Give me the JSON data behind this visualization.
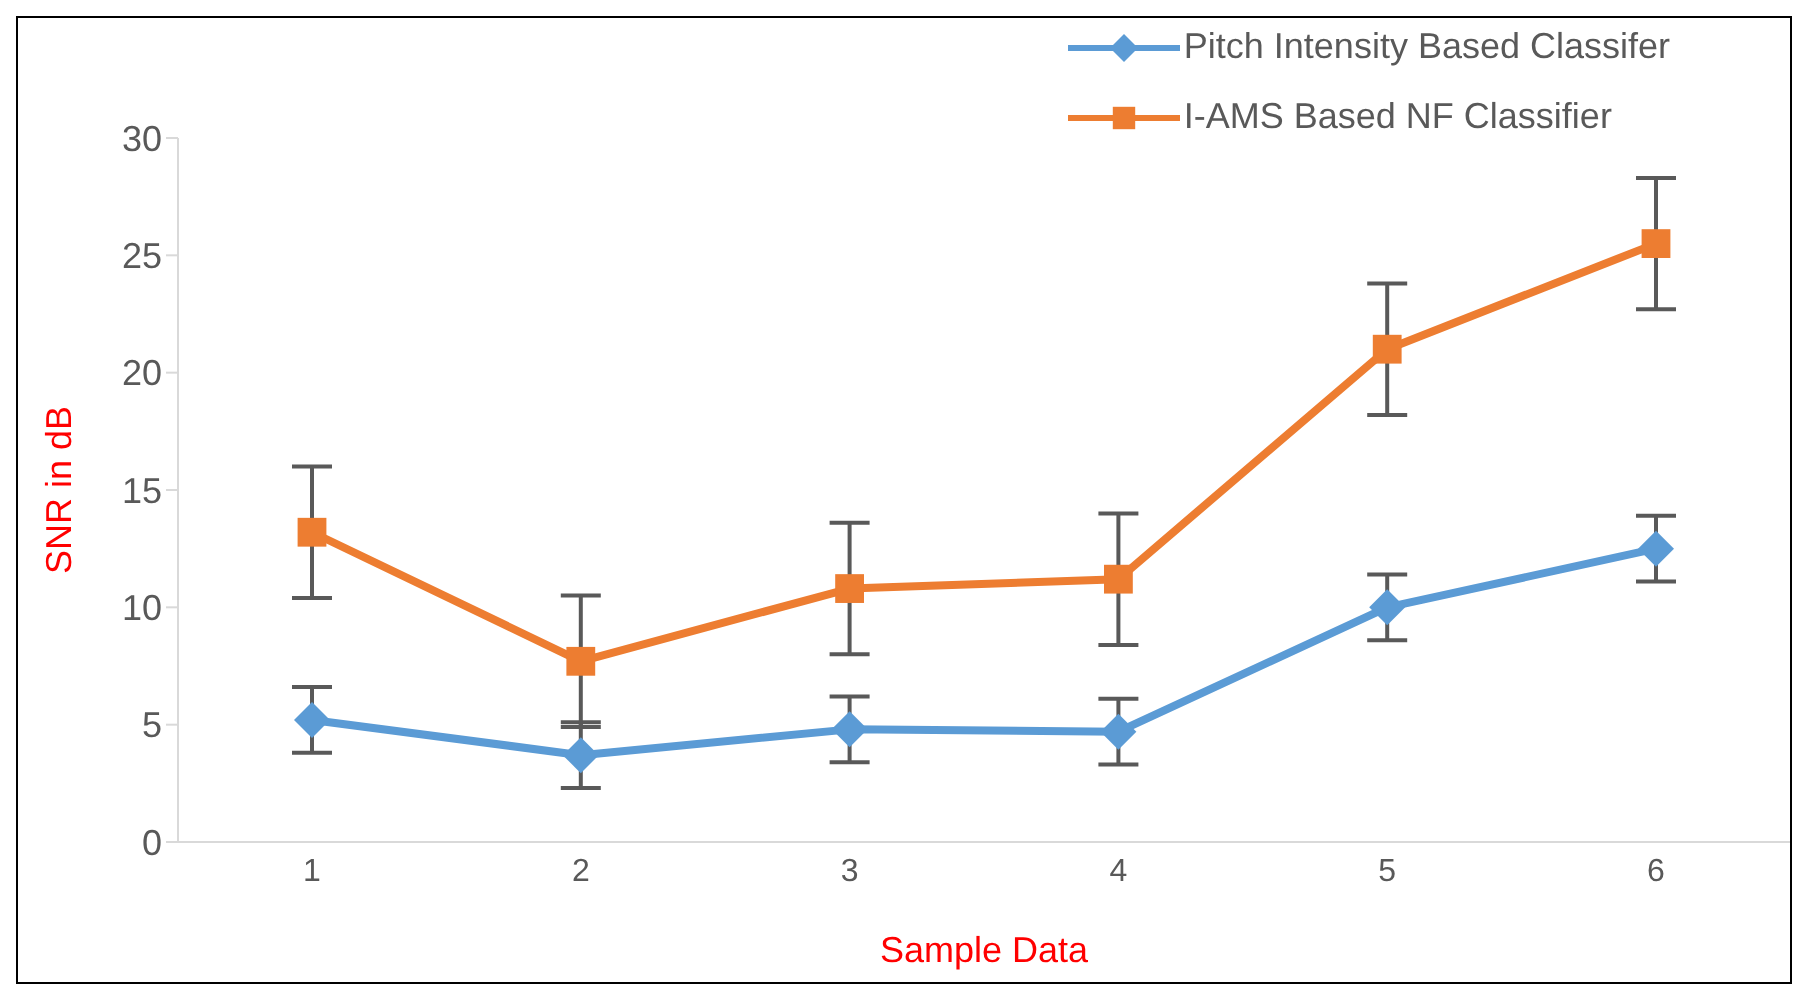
{
  "chart_data": {
    "type": "line",
    "xlabel": "Sample Data",
    "ylabel": "SNR in dB",
    "categories": [
      "1",
      "2",
      "3",
      "4",
      "5",
      "6"
    ],
    "series": [
      {
        "name": "Pitch Intensity Based Classifer",
        "color": "#5b9bd5",
        "marker": "diamond",
        "values": [
          5.2,
          3.7,
          4.8,
          4.7,
          10.0,
          12.5
        ],
        "errors": [
          1.4,
          1.4,
          1.4,
          1.4,
          1.4,
          1.4
        ]
      },
      {
        "name": "I-AMS Based  NF Classifier",
        "color": "#ed7d31",
        "marker": "square",
        "values": [
          13.2,
          7.7,
          10.8,
          11.2,
          21.0,
          25.5
        ],
        "errors": [
          2.8,
          2.8,
          2.8,
          2.8,
          2.8,
          2.8
        ]
      }
    ],
    "ylim": [
      0,
      30
    ],
    "yticks": [
      0,
      5,
      10,
      15,
      20,
      25,
      30
    ],
    "grid": false,
    "legend": "top right"
  }
}
